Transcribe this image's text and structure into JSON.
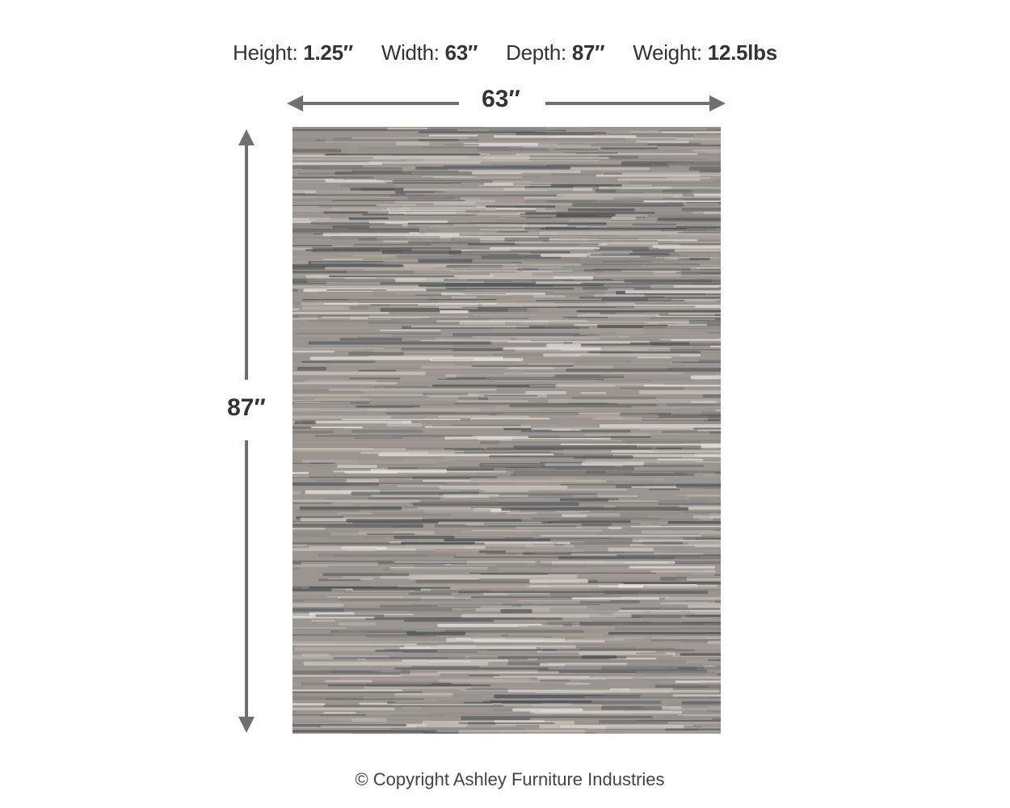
{
  "specs": [
    {
      "label": "Height:",
      "value": "1.25″"
    },
    {
      "label": "Width:",
      "value": "63″"
    },
    {
      "label": "Depth:",
      "value": "87″"
    },
    {
      "label": "Weight:",
      "value": "12.5lbs"
    }
  ],
  "dimensions": {
    "width_label": "63″",
    "height_label": "87″"
  },
  "colors": {
    "arrow": "#707070",
    "text": "#333333",
    "rug_palette": [
      "#5f6163",
      "#8a8784",
      "#a89f96",
      "#c9c3bb",
      "#e6e2dc",
      "#4f5254"
    ]
  },
  "copyright": "© Copyright Ashley Furniture Industries"
}
